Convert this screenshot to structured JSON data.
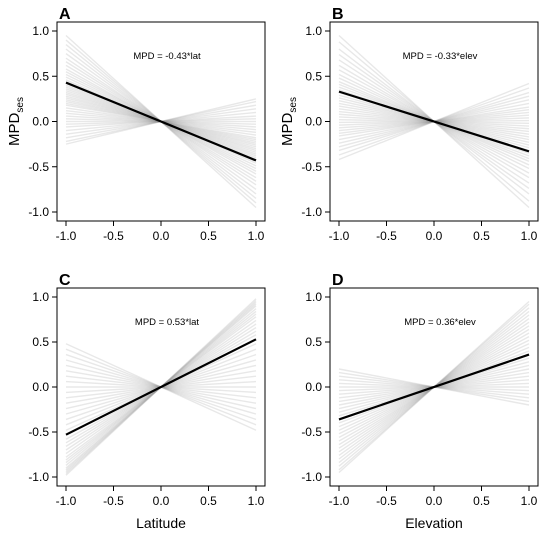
{
  "chart_data": [
    {
      "type": "line",
      "panel": "A",
      "annotation": "MPD = -0.43*lat",
      "xlabel": "",
      "ylabel": "MPD",
      "ylabel_subscript": "ses",
      "xlim": [
        -1.0,
        1.0
      ],
      "ylim": [
        -1.0,
        1.0
      ],
      "xticks": [
        "-1.0",
        "-0.5",
        "0.0",
        "0.5",
        "1.0"
      ],
      "yticks": [
        "-1.0",
        "-0.5",
        "0.0",
        "0.5",
        "1.0"
      ],
      "mean_slope": -0.43,
      "background_slopes": [
        -0.95,
        -0.9,
        -0.85,
        -0.8,
        -0.75,
        -0.7,
        -0.66,
        -0.62,
        -0.58,
        -0.55,
        -0.52,
        -0.49,
        -0.46,
        -0.44,
        -0.42,
        -0.4,
        -0.38,
        -0.36,
        -0.34,
        -0.32,
        -0.3,
        -0.28,
        -0.26,
        -0.24,
        -0.22,
        -0.2,
        -0.18,
        -0.15,
        -0.12,
        -0.09,
        -0.06,
        -0.03,
        0.0,
        0.03,
        0.06,
        0.1,
        0.14,
        0.18,
        0.22,
        0.25
      ]
    },
    {
      "type": "line",
      "panel": "B",
      "annotation": "MPD = -0.33*elev",
      "xlabel": "",
      "ylabel": "MPD",
      "ylabel_subscript": "ses",
      "xlim": [
        -1.0,
        1.0
      ],
      "ylim": [
        -1.0,
        1.0
      ],
      "xticks": [
        "-1.0",
        "-0.5",
        "0.0",
        "0.5",
        "1.0"
      ],
      "yticks": [
        "-1.0",
        "-0.5",
        "0.0",
        "0.5",
        "1.0"
      ],
      "mean_slope": -0.33,
      "background_slopes": [
        -0.95,
        -0.88,
        -0.8,
        -0.74,
        -0.68,
        -0.62,
        -0.57,
        -0.52,
        -0.48,
        -0.44,
        -0.41,
        -0.38,
        -0.35,
        -0.32,
        -0.29,
        -0.26,
        -0.23,
        -0.2,
        -0.17,
        -0.14,
        -0.11,
        -0.08,
        -0.05,
        -0.02,
        0.01,
        0.04,
        0.07,
        0.1,
        0.13,
        0.16,
        0.2,
        0.24,
        0.28,
        0.32,
        0.37,
        0.42
      ]
    },
    {
      "type": "line",
      "panel": "C",
      "annotation": "MPD = 0.53*lat",
      "xlabel": "Latitude",
      "ylabel": "",
      "ylabel_subscript": "",
      "xlim": [
        -1.0,
        1.0
      ],
      "ylim": [
        -1.0,
        1.0
      ],
      "xticks": [
        "-1.0",
        "-0.5",
        "0.0",
        "0.5",
        "1.0"
      ],
      "yticks": [
        "-1.0",
        "-0.5",
        "0.0",
        "0.5",
        "1.0"
      ],
      "mean_slope": 0.53,
      "background_slopes": [
        -0.48,
        -0.42,
        -0.36,
        -0.3,
        -0.24,
        -0.18,
        -0.12,
        -0.06,
        0.0,
        0.06,
        0.12,
        0.18,
        0.24,
        0.3,
        0.36,
        0.42,
        0.48,
        0.53,
        0.58,
        0.62,
        0.66,
        0.7,
        0.74,
        0.78,
        0.81,
        0.84,
        0.87,
        0.9,
        0.92,
        0.94,
        0.96,
        0.98
      ]
    },
    {
      "type": "line",
      "panel": "D",
      "annotation": "MPD = 0.36*elev",
      "xlabel": "Elevation",
      "ylabel": "",
      "ylabel_subscript": "",
      "xlim": [
        -1.0,
        1.0
      ],
      "ylim": [
        -1.0,
        1.0
      ],
      "xticks": [
        "-1.0",
        "-0.5",
        "0.0",
        "0.5",
        "1.0"
      ],
      "yticks": [
        "-1.0",
        "-0.5",
        "0.0",
        "0.5",
        "1.0"
      ],
      "mean_slope": 0.36,
      "background_slopes": [
        -0.2,
        -0.16,
        -0.12,
        -0.08,
        -0.04,
        0.0,
        0.04,
        0.08,
        0.12,
        0.16,
        0.2,
        0.24,
        0.28,
        0.32,
        0.36,
        0.4,
        0.44,
        0.48,
        0.52,
        0.56,
        0.6,
        0.64,
        0.68,
        0.72,
        0.76,
        0.8,
        0.84,
        0.88,
        0.92,
        0.95
      ]
    }
  ],
  "colors": {
    "mean_line": "#000000",
    "background_line": "#8c8c8c",
    "frame": "#000000"
  }
}
